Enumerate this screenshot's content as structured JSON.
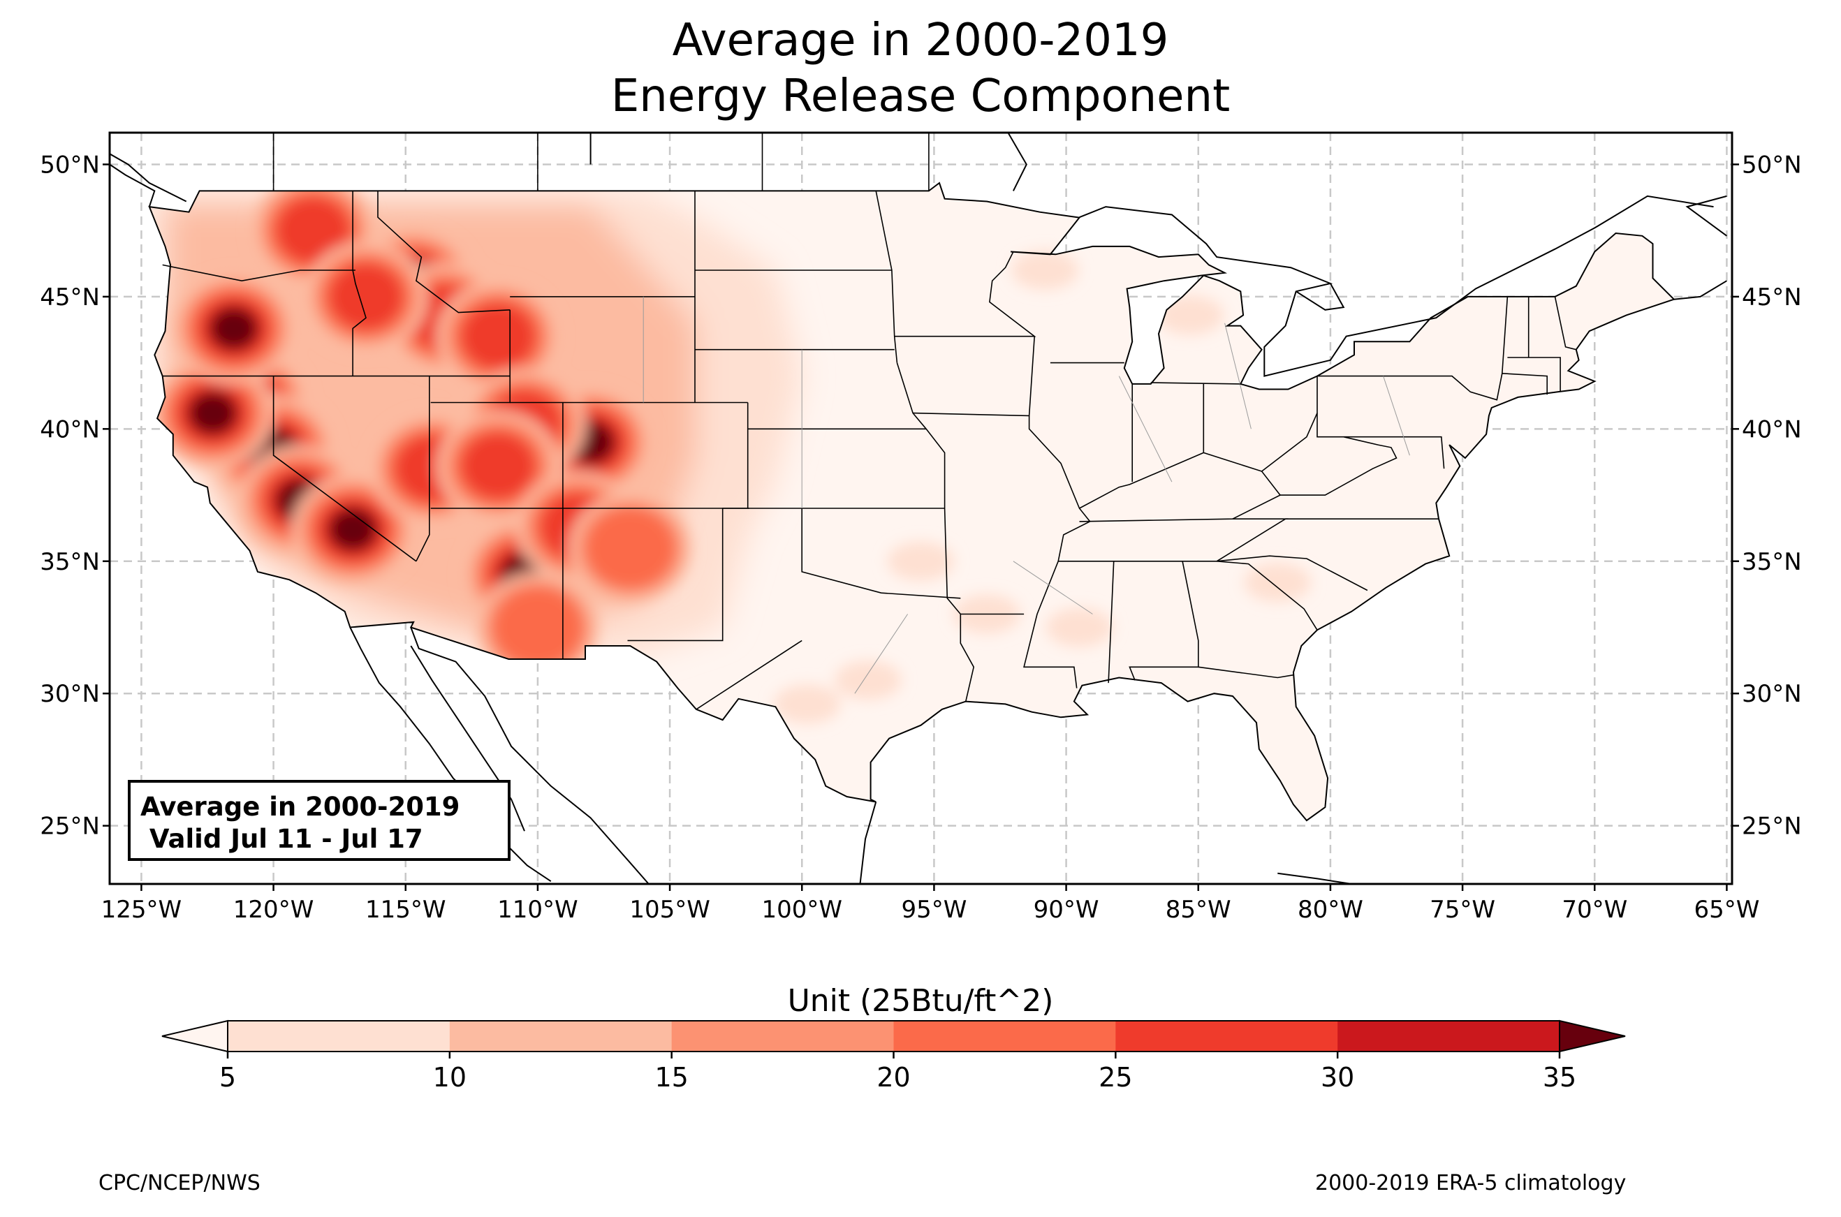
{
  "title": {
    "line1": "Average in 2000-2019",
    "line2": "Energy Release Component"
  },
  "map": {
    "projection": "plate-carree",
    "lon_range": [
      -126.2,
      -64.8
    ],
    "lat_range": [
      22.8,
      51.2
    ],
    "gridlines": "dashed",
    "lon_ticks": [
      {
        "value": -125,
        "label": "125°W"
      },
      {
        "value": -120,
        "label": "120°W"
      },
      {
        "value": -115,
        "label": "115°W"
      },
      {
        "value": -110,
        "label": "110°W"
      },
      {
        "value": -105,
        "label": "105°W"
      },
      {
        "value": -100,
        "label": "100°W"
      },
      {
        "value": -95,
        "label": "95°W"
      },
      {
        "value": -90,
        "label": "90°W"
      },
      {
        "value": -85,
        "label": "85°W"
      },
      {
        "value": -80,
        "label": "80°W"
      },
      {
        "value": -75,
        "label": "75°W"
      },
      {
        "value": -70,
        "label": "70°W"
      },
      {
        "value": -65,
        "label": "65°W"
      }
    ],
    "lat_ticks": [
      {
        "value": 50,
        "label": "50°N"
      },
      {
        "value": 45,
        "label": "45°N"
      },
      {
        "value": 40,
        "label": "40°N"
      },
      {
        "value": 35,
        "label": "35°N"
      },
      {
        "value": 30,
        "label": "30°N"
      },
      {
        "value": 25,
        "label": "25°N"
      }
    ],
    "field_summary": {
      "highest_values": "Sierra Nevada / northern California, Oregon Cascades, central Idaho, Nevada, Utah, western Colorado, Arizona",
      "low_values": "Great Plains, Midwest and eastern US mostly 5-10"
    },
    "hotspots": [
      {
        "lon": -121.0,
        "lat": 41.0,
        "class": 30
      },
      {
        "lon": -120.0,
        "lat": 39.2,
        "class": 30
      },
      {
        "lon": -122.3,
        "lat": 40.6,
        "class": 30
      },
      {
        "lon": -119.0,
        "lat": 37.3,
        "class": 30
      },
      {
        "lon": -117.0,
        "lat": 36.2,
        "class": 30
      },
      {
        "lon": -121.5,
        "lat": 43.8,
        "class": 30
      },
      {
        "lon": -118.5,
        "lat": 47.5,
        "class": 25
      },
      {
        "lon": -114.7,
        "lat": 45.5,
        "class": 30
      },
      {
        "lon": -113.5,
        "lat": 44.2,
        "class": 25
      },
      {
        "lon": -116.5,
        "lat": 45.0,
        "class": 25
      },
      {
        "lon": -111.5,
        "lat": 43.5,
        "class": 25
      },
      {
        "lon": -108.0,
        "lat": 39.5,
        "class": 30
      },
      {
        "lon": -110.5,
        "lat": 40.2,
        "class": 25
      },
      {
        "lon": -114.0,
        "lat": 38.5,
        "class": 25
      },
      {
        "lon": -111.5,
        "lat": 38.6,
        "class": 25
      },
      {
        "lon": -110.5,
        "lat": 34.5,
        "class": 30
      },
      {
        "lon": -108.5,
        "lat": 36.3,
        "class": 25
      },
      {
        "lon": -106.5,
        "lat": 35.5,
        "class": 20
      },
      {
        "lon": -110.0,
        "lat": 32.5,
        "class": 20
      }
    ],
    "minor_patches": [
      {
        "lon": -95.5,
        "lat": 35.0
      },
      {
        "lon": -93.0,
        "lat": 33.0
      },
      {
        "lon": -89.5,
        "lat": 32.5
      },
      {
        "lon": -85.3,
        "lat": 44.3
      },
      {
        "lon": -99.8,
        "lat": 29.6
      },
      {
        "lon": -97.5,
        "lat": 30.5
      },
      {
        "lon": -90.8,
        "lat": 46.0
      },
      {
        "lon": -82.0,
        "lat": 34.2
      }
    ]
  },
  "info_box": {
    "line1": "Average in 2000-2019",
    "line2": " Valid Jul 11 - Jul 17"
  },
  "colorbar": {
    "unit_label": "Unit (25Btu/ft^2)",
    "levels": [
      5,
      10,
      15,
      20,
      25,
      30,
      35
    ],
    "tick_labels": [
      "5",
      "10",
      "15",
      "20",
      "25",
      "30",
      "35"
    ],
    "colors": [
      "#fee0d2",
      "#fcbba1",
      "#fc9272",
      "#fb6a4a",
      "#ef3b2c",
      "#cb181d",
      "#a50f15"
    ],
    "under_color": "#fff5f0",
    "over_color": "#67000d",
    "extend": "both"
  },
  "footer": {
    "left": "CPC/NCEP/NWS",
    "right": "2000-2019 ERA-5 climatology"
  }
}
